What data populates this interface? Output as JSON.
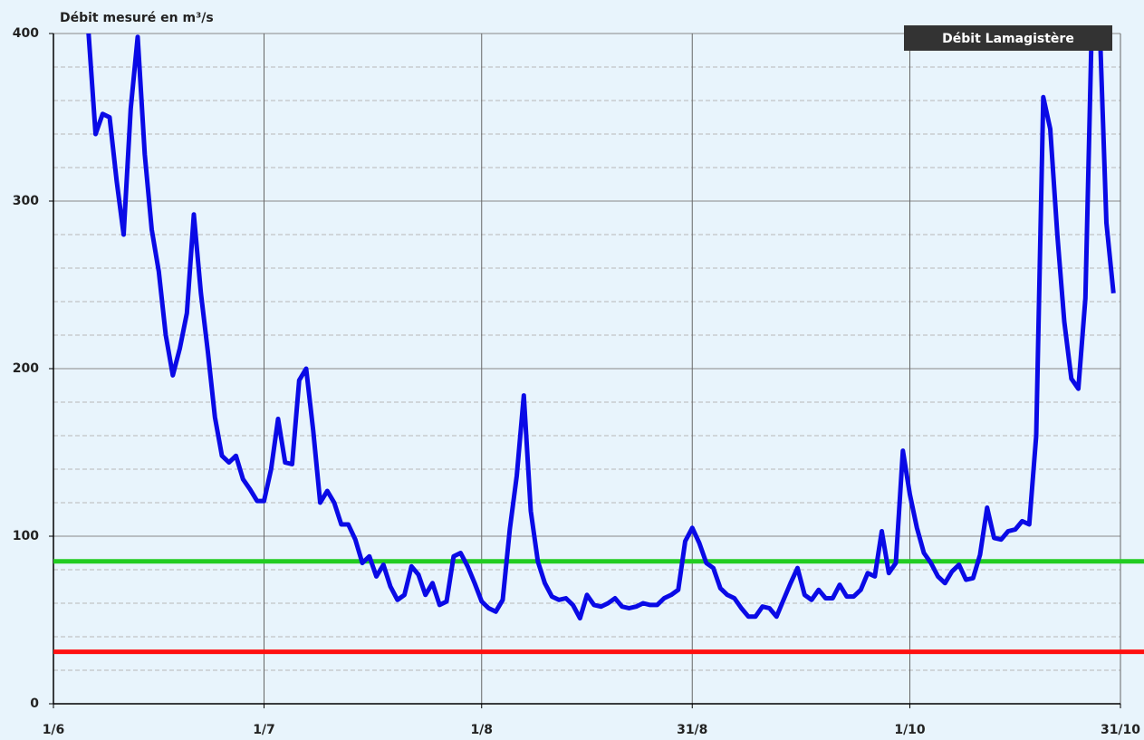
{
  "chart_data": {
    "type": "line",
    "title": "Débit mesuré en m³/s",
    "x": [
      2,
      3,
      4,
      5,
      6,
      7,
      8,
      9,
      10,
      11,
      12,
      13,
      14,
      15,
      16,
      17,
      18,
      19,
      20,
      21,
      22,
      23,
      24,
      25,
      26,
      27,
      28,
      29,
      30,
      31,
      32,
      33,
      34,
      35,
      36,
      37,
      38,
      39,
      40,
      41,
      42,
      43,
      44,
      45,
      46,
      47,
      48,
      49,
      50,
      51,
      52,
      53,
      54,
      55,
      56,
      57,
      58,
      59,
      60,
      61,
      62,
      63,
      64,
      65,
      66,
      67,
      68,
      69,
      70,
      71,
      72,
      73,
      74,
      75,
      76,
      77,
      78,
      79,
      80,
      81,
      82,
      83,
      84,
      85,
      86,
      87,
      88,
      89,
      90,
      91,
      92,
      93,
      94,
      95,
      96,
      97,
      98,
      99,
      100,
      101,
      102,
      103,
      104,
      105,
      106,
      107,
      108,
      109,
      110,
      111,
      112,
      113,
      114,
      115,
      116,
      117,
      118,
      119,
      120,
      121,
      122,
      123,
      124,
      125,
      126,
      127,
      128,
      129,
      130,
      131,
      132,
      133,
      134,
      135,
      136,
      137,
      138,
      139,
      140,
      141,
      142,
      143,
      144,
      145,
      146,
      147,
      148,
      149,
      150,
      151
    ],
    "series": [
      {
        "name": "Débit Lamagistère",
        "color": "#0a0ae6",
        "values": [
          430,
          420,
          410,
          400,
          340,
          352,
          350,
          312,
          280,
          355,
          398,
          328,
          283,
          258,
          220,
          196,
          212,
          233,
          292,
          245,
          210,
          171,
          148,
          144,
          148,
          134,
          128,
          121,
          121,
          140,
          170,
          144,
          143,
          193,
          200,
          163,
          120,
          127,
          120,
          107,
          107,
          98,
          84,
          88,
          76,
          83,
          70,
          62,
          65,
          82,
          77,
          65,
          72,
          59,
          61,
          88,
          90,
          82,
          72,
          61,
          57,
          55,
          62,
          104,
          136,
          184,
          115,
          85,
          72,
          64,
          62,
          63,
          59,
          51,
          65,
          59,
          58,
          60,
          63,
          58,
          57,
          58,
          60,
          59,
          59,
          63,
          65,
          68,
          97,
          105,
          96,
          84,
          81,
          69,
          65,
          63,
          57,
          52,
          52,
          58,
          57,
          52,
          62,
          72,
          81,
          65,
          62,
          68,
          63,
          63,
          71,
          64,
          64,
          68,
          78,
          76,
          103,
          78,
          84,
          151,
          125,
          105,
          90,
          84,
          76,
          72,
          79,
          83,
          74,
          75,
          89,
          117,
          99,
          98,
          103,
          104,
          109,
          107,
          160,
          362,
          343,
          280,
          228,
          194,
          188,
          242,
          420,
          410,
          287,
          245
        ]
      }
    ],
    "reference_lines": [
      {
        "value": 85,
        "color": "#22cc22"
      },
      {
        "value": 31,
        "color": "#ff1010"
      }
    ],
    "xlim": [
      0,
      152
    ],
    "xticks": [
      {
        "value": 0,
        "label": "1/6"
      },
      {
        "value": 30,
        "label": "1/7"
      },
      {
        "value": 61,
        "label": "1/8"
      },
      {
        "value": 91,
        "label": "31/8"
      },
      {
        "value": 122,
        "label": "1/10"
      },
      {
        "value": 152,
        "label": "31/10"
      }
    ],
    "ylim": [
      0,
      400
    ],
    "yticks": [
      0,
      100,
      200,
      300,
      400
    ],
    "minor_yticks": [
      20,
      40,
      60,
      80,
      120,
      140,
      160,
      180,
      220,
      240,
      260,
      280,
      320,
      340,
      360,
      380
    ],
    "grid": true,
    "legend": "top-right"
  }
}
